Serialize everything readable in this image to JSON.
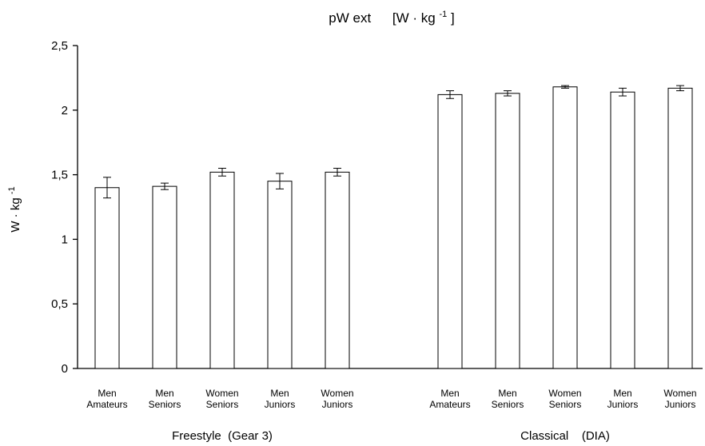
{
  "chart_data": {
    "type": "bar",
    "title": "pW ext",
    "title_unit": "[W · kg",
    "title_unit_sup": "-1",
    "title_unit_end": "]",
    "ylabel": "W · kg",
    "ylabel_sup": "-1",
    "xlabel": "",
    "ylim": [
      0,
      2.5
    ],
    "yticks": [
      0,
      0.5,
      1,
      1.5,
      2,
      2.5
    ],
    "ytick_labels": [
      "0",
      "0,5",
      "1",
      "1,5",
      "2",
      "2,5"
    ],
    "grid": false,
    "legend": "none",
    "groups": [
      {
        "name": "Freestyle  (Gear 3)",
        "categories": [
          [
            "Men",
            "Amateurs"
          ],
          [
            "Men",
            "Seniors"
          ],
          [
            "Women",
            "Seniors"
          ],
          [
            "Men",
            "Juniors"
          ],
          [
            "Women",
            "Juniors"
          ]
        ],
        "values": [
          1.4,
          1.41,
          1.52,
          1.45,
          1.52
        ],
        "errors": [
          0.08,
          0.025,
          0.03,
          0.06,
          0.03
        ]
      },
      {
        "name": "Classical    (DIA)",
        "categories": [
          [
            "Men",
            "Amateurs"
          ],
          [
            "Men",
            "Seniors"
          ],
          [
            "Women",
            "Seniors"
          ],
          [
            "Men",
            "Juniors"
          ],
          [
            "Women",
            "Juniors"
          ]
        ],
        "values": [
          2.12,
          2.13,
          2.18,
          2.14,
          2.17
        ],
        "errors": [
          0.03,
          0.02,
          0.01,
          0.03,
          0.02
        ]
      }
    ]
  }
}
